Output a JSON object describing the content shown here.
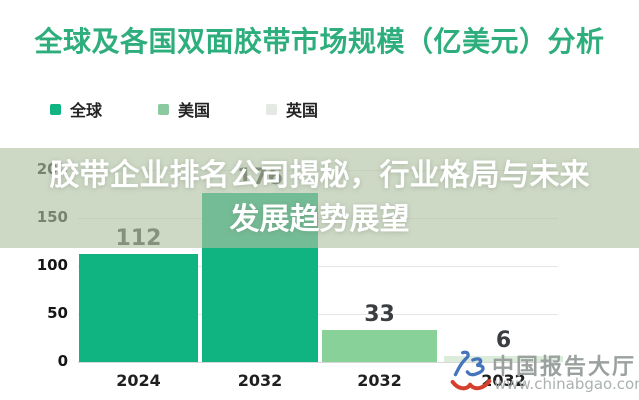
{
  "title": {
    "text": "全球及各国双面胶带市场规模（亿美元）分析",
    "color": "#2fae7d"
  },
  "legend": {
    "items": [
      {
        "label": "全球",
        "color": "#10b481"
      },
      {
        "label": "美国",
        "color": "#8bc9a0"
      },
      {
        "label": "英国",
        "color": "#e4e9e4"
      }
    ]
  },
  "overlay": {
    "line1": "胶带企业排名公司揭秘，行业格局与未来",
    "line2": "发展趋势展望"
  },
  "watermark": {
    "brand": "中国报告大厅",
    "url": "www.chinabgao.com",
    "logo": "chinabgao-logo",
    "logo_blue": "#4374bc",
    "logo_red": "#d5402e",
    "text_color": "#9aa19e"
  },
  "chart_data": {
    "type": "bar",
    "title": "全球及各国双面胶带市场规模（亿美元）分析",
    "categories": [
      "2024",
      "2032",
      "2032",
      "2032"
    ],
    "bars": [
      {
        "category": "2024",
        "series": "全球",
        "value": 112,
        "color": "#10b481"
      },
      {
        "category": "2032",
        "series": "全球",
        "value": 176,
        "color": "#10b481"
      },
      {
        "category": "2032",
        "series": "美国",
        "value": 33,
        "color": "#88d299"
      },
      {
        "category": "2032",
        "series": "英国",
        "value": 6,
        "color": "#dcecdb"
      }
    ],
    "series_legend": [
      "全球",
      "美国",
      "英国"
    ],
    "ylim": [
      0,
      200
    ],
    "yticks": [
      0,
      50,
      100,
      150,
      200
    ],
    "grid": true,
    "legend_position": "top-left",
    "value_labels": true,
    "xlabel": "",
    "ylabel": ""
  }
}
